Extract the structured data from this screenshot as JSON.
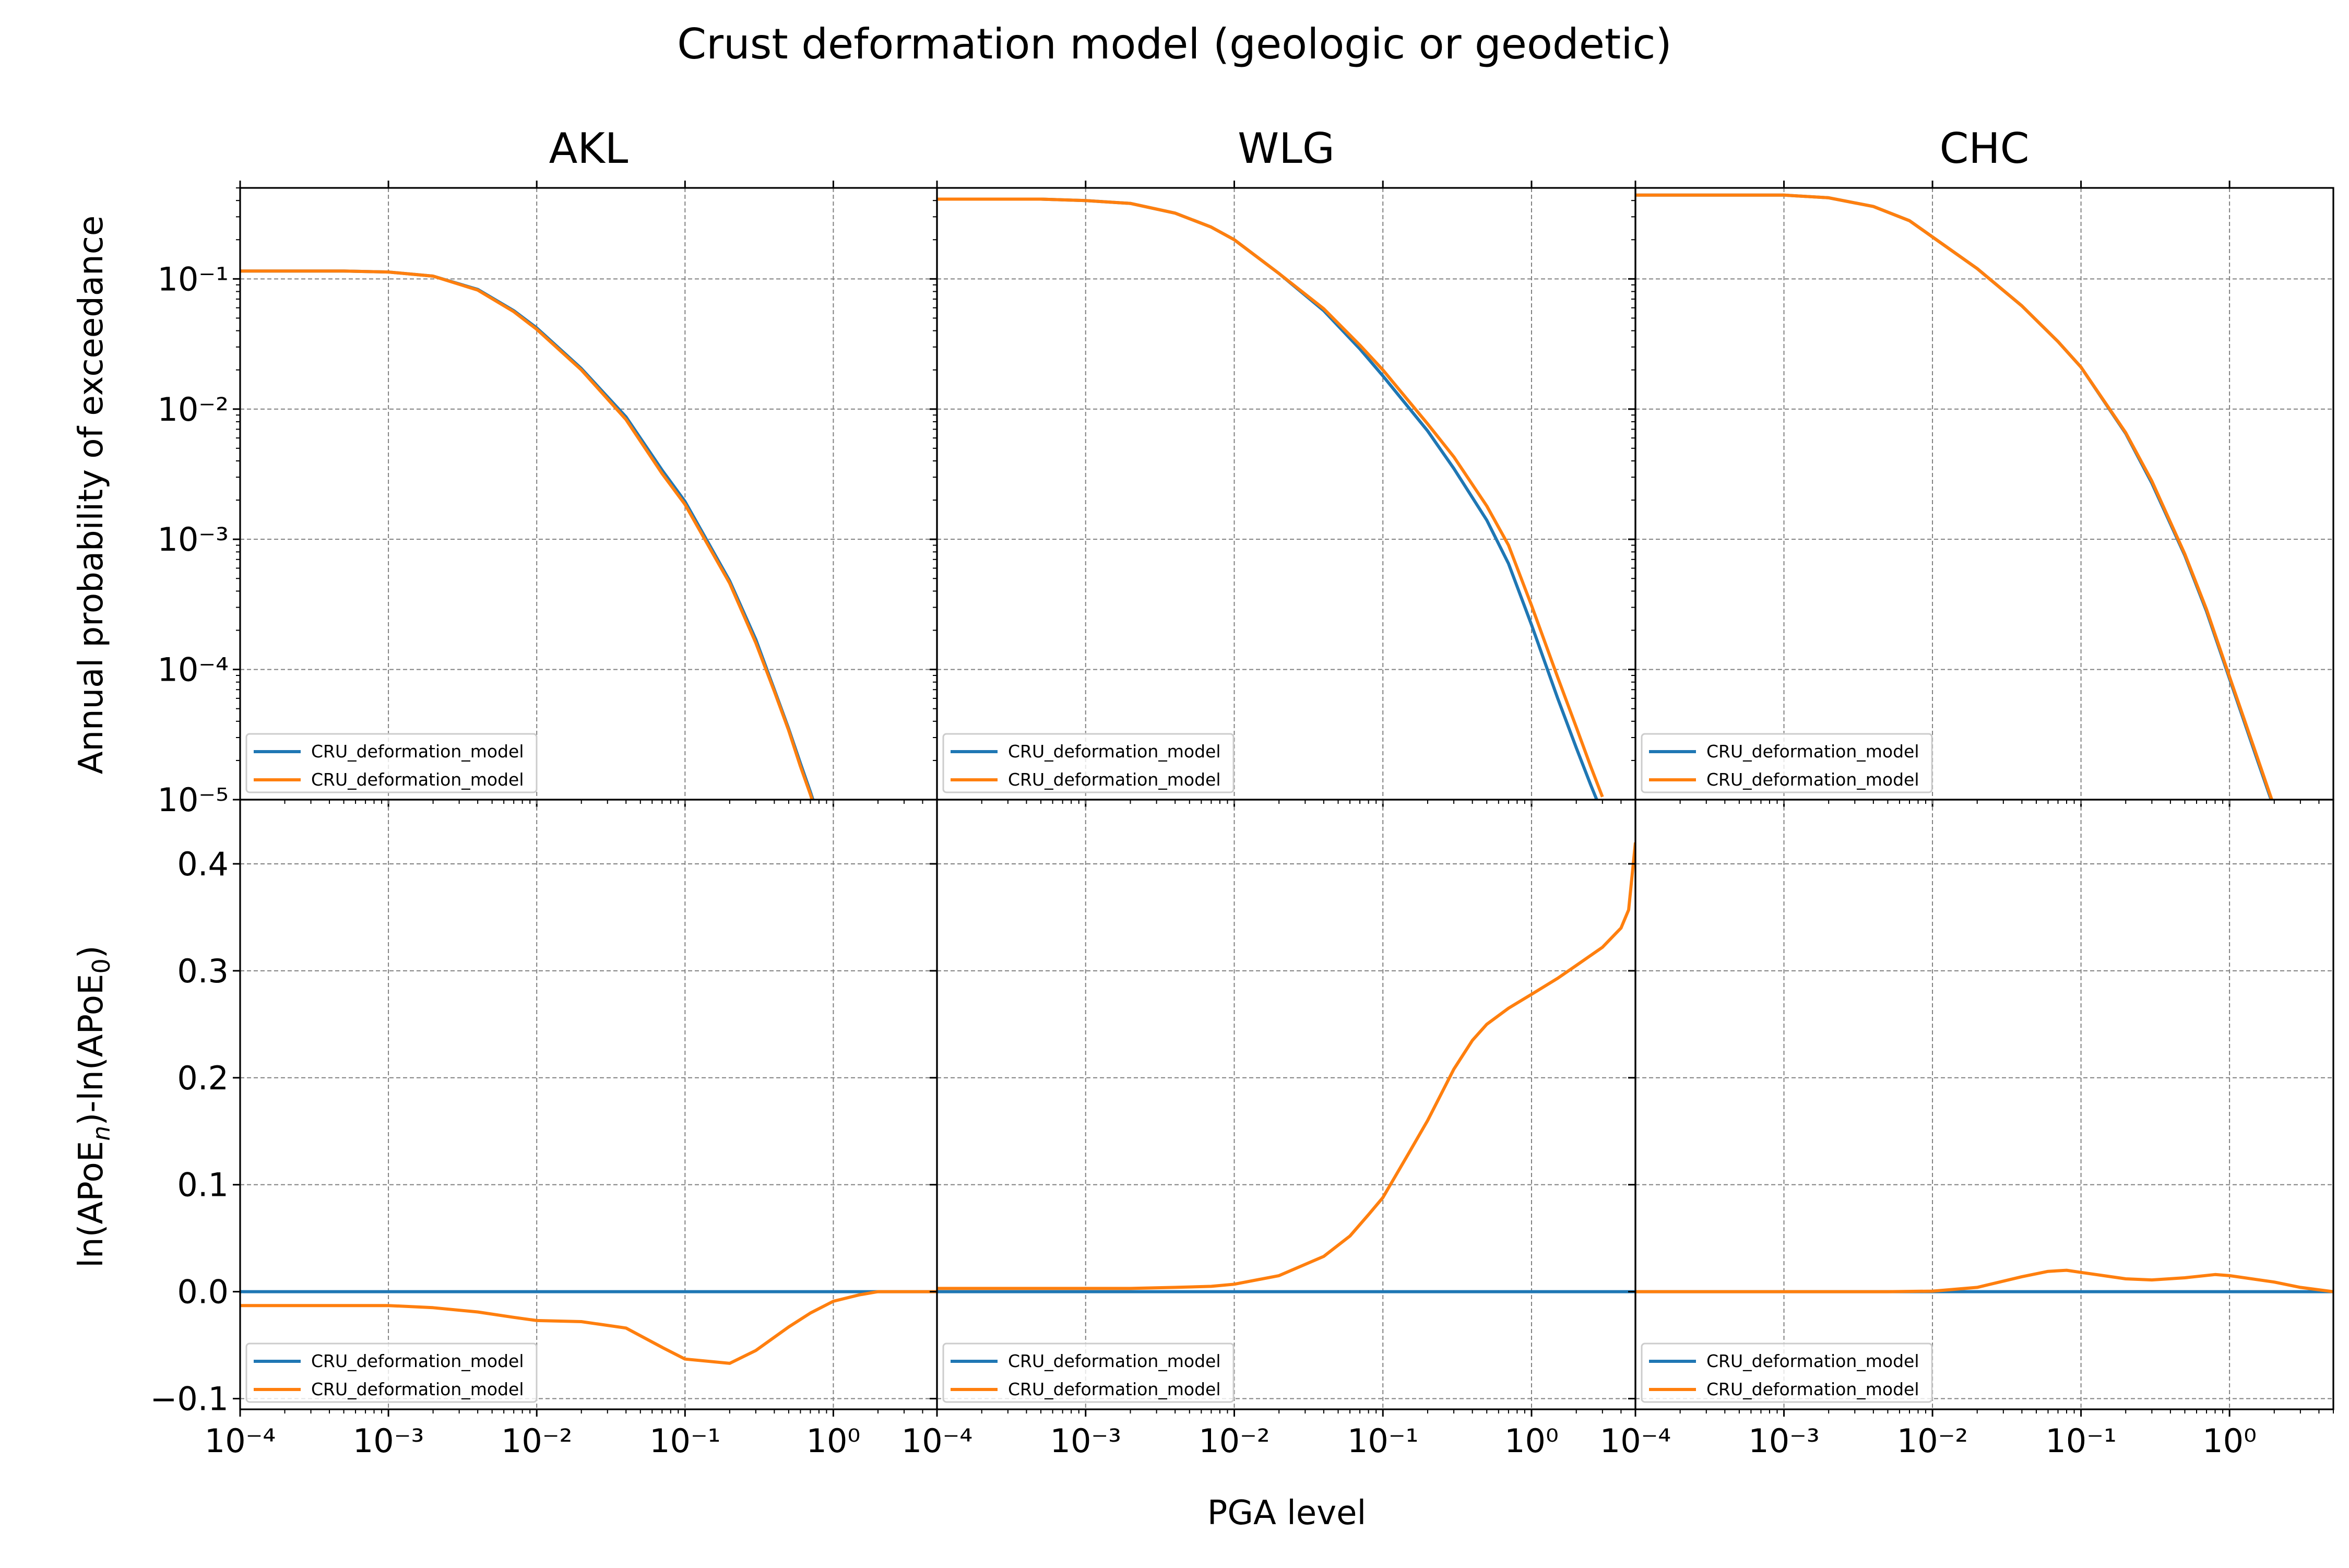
{
  "figure": {
    "title": "Crust deformation model (geologic or geodetic)",
    "xlabel": "PGA level",
    "ylabel_top": "Annual probability of exceedance",
    "ylabel_bottom": {
      "prefix": "ln(APoE",
      "sub_n": "n",
      "middle": ")-ln(APoE",
      "sub_0": "0",
      "suffix": ")"
    }
  },
  "colors": {
    "series_0": "#1f77b4",
    "series_1": "#ff7f0e"
  },
  "chart_data": [
    {
      "type": "line",
      "panel": "AKL-hazard",
      "title": "AKL",
      "xscale": "log",
      "yscale": "log",
      "xlim": [
        0.0001,
        5
      ],
      "ylim": [
        1e-05,
        0.5
      ],
      "grid": true,
      "legend": "lower-left",
      "series": [
        {
          "name": "CRU_deformation_model",
          "color": "#1f77b4",
          "x": [
            0.0001,
            0.0005,
            0.001,
            0.002,
            0.004,
            0.007,
            0.01,
            0.02,
            0.04,
            0.07,
            0.1,
            0.2,
            0.3,
            0.4,
            0.5,
            0.6,
            0.7,
            0.8
          ],
          "y": [
            0.115,
            0.115,
            0.113,
            0.105,
            0.083,
            0.057,
            0.042,
            0.0205,
            0.0087,
            0.0034,
            0.00195,
            0.00048,
            0.00017,
            7e-05,
            3.5e-05,
            1.9e-05,
            1.15e-05,
            7.2e-06
          ]
        },
        {
          "name": "CRU_deformation_model",
          "color": "#ff7f0e",
          "x": [
            0.0001,
            0.0005,
            0.001,
            0.002,
            0.004,
            0.007,
            0.01,
            0.02,
            0.04,
            0.07,
            0.1,
            0.2,
            0.3,
            0.4,
            0.5,
            0.6,
            0.7,
            0.8
          ],
          "y": [
            0.115,
            0.115,
            0.113,
            0.105,
            0.082,
            0.056,
            0.041,
            0.02,
            0.0083,
            0.0032,
            0.00185,
            0.00046,
            0.00016,
            6.8e-05,
            3.4e-05,
            1.8e-05,
            1.1e-05,
            6.8e-06
          ]
        }
      ]
    },
    {
      "type": "line",
      "panel": "WLG-hazard",
      "title": "WLG",
      "xscale": "log",
      "yscale": "log",
      "xlim": [
        0.0001,
        5
      ],
      "ylim": [
        1e-05,
        0.5
      ],
      "grid": true,
      "legend": "lower-left",
      "series": [
        {
          "name": "CRU_deformation_model",
          "color": "#1f77b4",
          "x": [
            0.0001,
            0.0005,
            0.001,
            0.002,
            0.004,
            0.007,
            0.01,
            0.02,
            0.04,
            0.07,
            0.1,
            0.2,
            0.3,
            0.5,
            0.7,
            1.0,
            1.5,
            2.0,
            2.5,
            3.0
          ],
          "y": [
            0.41,
            0.41,
            0.4,
            0.38,
            0.32,
            0.25,
            0.2,
            0.11,
            0.057,
            0.029,
            0.018,
            0.0068,
            0.0035,
            0.0014,
            0.00065,
            0.00022,
            6e-05,
            2.5e-05,
            1.3e-05,
            7.8e-06
          ]
        },
        {
          "name": "CRU_deformation_model",
          "color": "#ff7f0e",
          "x": [
            0.0001,
            0.0005,
            0.001,
            0.002,
            0.004,
            0.007,
            0.01,
            0.02,
            0.04,
            0.07,
            0.1,
            0.2,
            0.3,
            0.5,
            0.7,
            1.0,
            1.5,
            2.0,
            2.5,
            3.0
          ],
          "y": [
            0.41,
            0.41,
            0.4,
            0.38,
            0.32,
            0.25,
            0.2,
            0.11,
            0.059,
            0.031,
            0.02,
            0.0077,
            0.0043,
            0.0018,
            0.0009,
            0.00031,
            8.7e-05,
            3.6e-05,
            1.8e-05,
            1.05e-05
          ]
        }
      ]
    },
    {
      "type": "line",
      "panel": "CHC-hazard",
      "title": "CHC",
      "xscale": "log",
      "yscale": "log",
      "xlim": [
        0.0001,
        5
      ],
      "ylim": [
        1e-05,
        0.5
      ],
      "grid": true,
      "legend": "lower-left",
      "series": [
        {
          "name": "CRU_deformation_model",
          "color": "#1f77b4",
          "x": [
            0.0001,
            0.0005,
            0.001,
            0.002,
            0.004,
            0.007,
            0.01,
            0.02,
            0.04,
            0.07,
            0.1,
            0.2,
            0.3,
            0.5,
            0.7,
            1.0,
            1.5,
            2.0
          ],
          "y": [
            0.44,
            0.44,
            0.44,
            0.42,
            0.36,
            0.28,
            0.21,
            0.12,
            0.062,
            0.033,
            0.021,
            0.0065,
            0.0027,
            0.00075,
            0.00028,
            8.5e-05,
            2.2e-05,
            8.5e-06
          ]
        },
        {
          "name": "CRU_deformation_model",
          "color": "#ff7f0e",
          "x": [
            0.0001,
            0.0005,
            0.001,
            0.002,
            0.004,
            0.007,
            0.01,
            0.02,
            0.04,
            0.07,
            0.1,
            0.2,
            0.3,
            0.5,
            0.7,
            1.0,
            1.5,
            2.0
          ],
          "y": [
            0.44,
            0.44,
            0.44,
            0.42,
            0.36,
            0.28,
            0.21,
            0.12,
            0.062,
            0.033,
            0.021,
            0.0066,
            0.0028,
            0.00077,
            0.00029,
            8.8e-05,
            2.3e-05,
            8.8e-06
          ]
        }
      ]
    },
    {
      "type": "line",
      "panel": "AKL-ratio",
      "xscale": "log",
      "yscale": "linear",
      "xlim": [
        0.0001,
        5
      ],
      "ylim": [
        -0.11,
        0.46
      ],
      "grid": true,
      "legend": "lower-left",
      "series": [
        {
          "name": "CRU_deformation_model",
          "color": "#1f77b4",
          "x": [
            0.0001,
            5
          ],
          "y": [
            0.0,
            0.0
          ]
        },
        {
          "name": "CRU_deformation_model",
          "color": "#ff7f0e",
          "x": [
            0.0001,
            0.0005,
            0.001,
            0.002,
            0.004,
            0.007,
            0.01,
            0.02,
            0.04,
            0.07,
            0.1,
            0.2,
            0.3,
            0.5,
            0.7,
            1.0,
            1.5,
            2.0,
            3.0,
            5.0
          ],
          "y": [
            -0.013,
            -0.013,
            -0.013,
            -0.015,
            -0.019,
            -0.024,
            -0.027,
            -0.028,
            -0.034,
            -0.052,
            -0.063,
            -0.067,
            -0.055,
            -0.033,
            -0.02,
            -0.009,
            -0.003,
            0.0,
            0.0,
            0.0
          ]
        }
      ]
    },
    {
      "type": "line",
      "panel": "WLG-ratio",
      "xscale": "log",
      "yscale": "linear",
      "xlim": [
        0.0001,
        5
      ],
      "ylim": [
        -0.11,
        0.46
      ],
      "grid": true,
      "legend": "lower-left",
      "series": [
        {
          "name": "CRU_deformation_model",
          "color": "#1f77b4",
          "x": [
            0.0001,
            5
          ],
          "y": [
            0.0,
            0.0
          ]
        },
        {
          "name": "CRU_deformation_model",
          "color": "#ff7f0e",
          "x": [
            0.0001,
            0.001,
            0.002,
            0.004,
            0.007,
            0.01,
            0.02,
            0.04,
            0.06,
            0.08,
            0.1,
            0.15,
            0.2,
            0.3,
            0.4,
            0.5,
            0.7,
            1.0,
            1.5,
            2.0,
            3.0,
            4.0,
            4.5,
            5.0
          ],
          "y": [
            0.003,
            0.003,
            0.003,
            0.004,
            0.005,
            0.007,
            0.015,
            0.033,
            0.052,
            0.072,
            0.088,
            0.13,
            0.16,
            0.208,
            0.235,
            0.25,
            0.265,
            0.278,
            0.293,
            0.305,
            0.322,
            0.34,
            0.357,
            0.42
          ]
        }
      ]
    },
    {
      "type": "line",
      "panel": "CHC-ratio",
      "xscale": "log",
      "yscale": "linear",
      "xlim": [
        0.0001,
        5
      ],
      "ylim": [
        -0.11,
        0.46
      ],
      "grid": true,
      "legend": "lower-left",
      "series": [
        {
          "name": "CRU_deformation_model",
          "color": "#1f77b4",
          "x": [
            0.0001,
            5
          ],
          "y": [
            0.0,
            0.0
          ]
        },
        {
          "name": "CRU_deformation_model",
          "color": "#ff7f0e",
          "x": [
            0.0001,
            0.001,
            0.005,
            0.01,
            0.02,
            0.04,
            0.06,
            0.08,
            0.1,
            0.2,
            0.3,
            0.5,
            0.8,
            1.0,
            2.0,
            3.0,
            5.0
          ],
          "y": [
            0.0,
            0.0,
            0.0,
            0.0005,
            0.004,
            0.014,
            0.019,
            0.02,
            0.018,
            0.012,
            0.011,
            0.013,
            0.016,
            0.015,
            0.009,
            0.004,
            0.0
          ]
        }
      ]
    }
  ]
}
